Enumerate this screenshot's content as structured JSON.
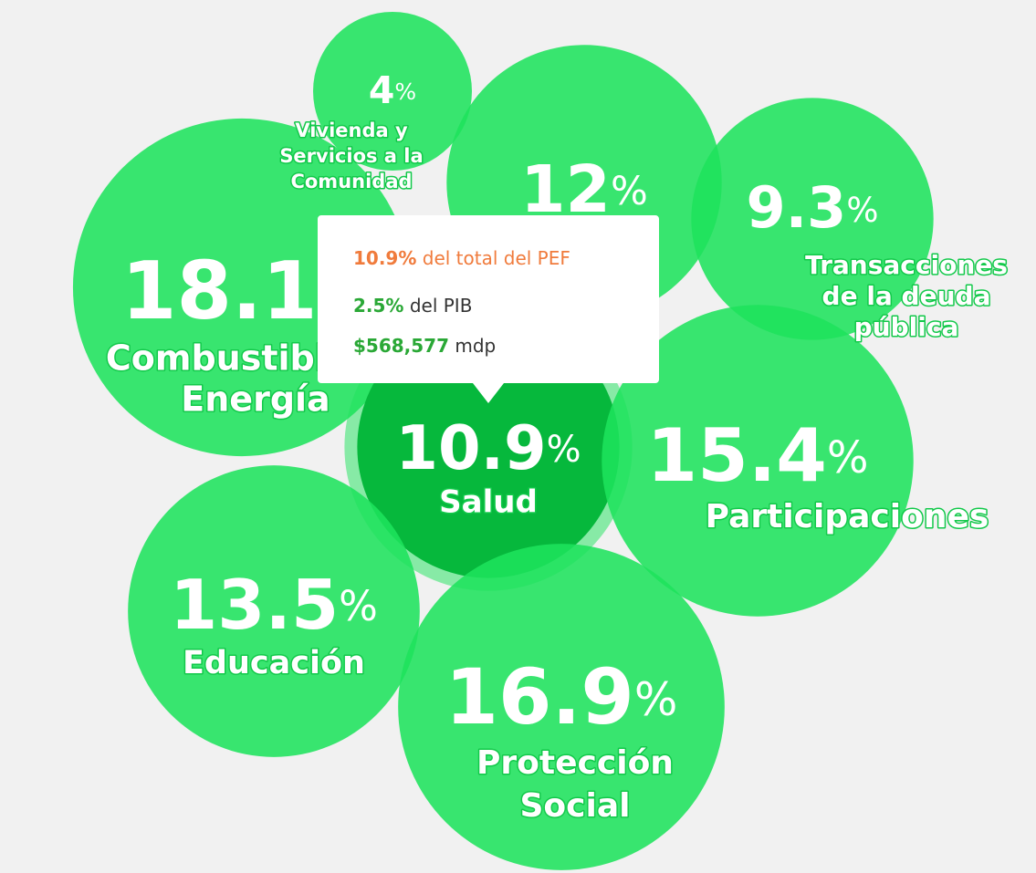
{
  "chart_data": {
    "type": "bubble",
    "categories": [
      [
        "Combustibles y",
        "Energía"
      ],
      [
        "Vivienda y",
        "Servicios a la",
        "Comunidad"
      ],
      null,
      [
        "Transacciones",
        "de la deuda",
        "pública"
      ],
      [
        "Salud"
      ],
      [
        "Participaciones"
      ],
      [
        "Educación"
      ],
      [
        "Protección",
        "Social"
      ]
    ],
    "values": [
      18.1,
      4,
      12,
      9.3,
      10.9,
      15.4,
      13.5,
      16.9
    ],
    "unit": "%",
    "color": "#1ee35c",
    "highlight_color": "#06b83c",
    "highlight": 4,
    "tooltip": {
      "pef_value": "10.9%",
      "pef_text": "del total del PEF",
      "pib_value": "2.5%",
      "pib_text": "del PIB",
      "amount_value": "$568,577",
      "amount_text": "mdp"
    }
  }
}
